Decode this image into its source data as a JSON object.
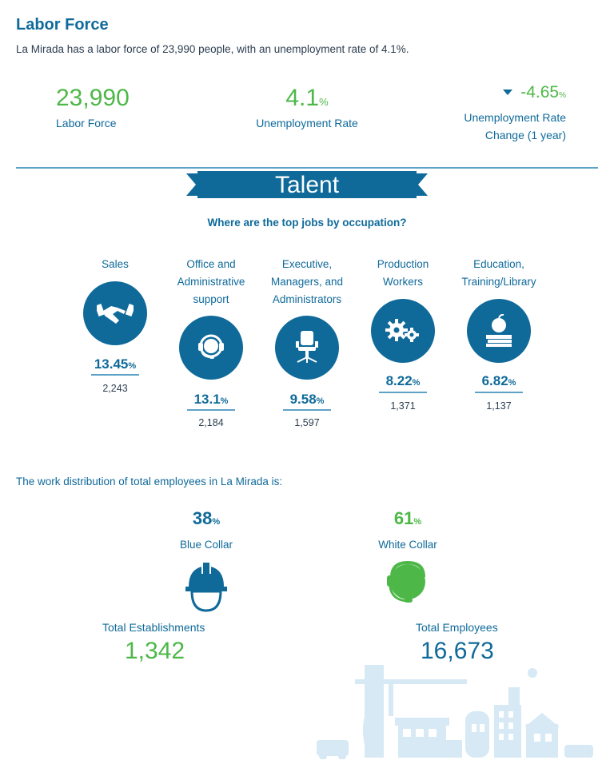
{
  "header": {
    "title": "Labor Force",
    "intro": "La Mirada has a labor force of 23,990 people, with an unemployment rate of 4.1%."
  },
  "stats": {
    "labor_force_value": "23,990",
    "labor_force_label": "Labor Force",
    "unemployment_value": "4.1",
    "unemployment_unit": "%",
    "unemployment_label": "Unemployment Rate",
    "change_value": "-4.65",
    "change_unit": "%",
    "change_label_line1": "Unemployment Rate",
    "change_label_line2": "Change (1 year)",
    "change_direction_icon": "triangle-down-icon"
  },
  "talent": {
    "ribbon_label": "Talent",
    "question": "Where are the top jobs by occupation?",
    "occupations": [
      {
        "label_lines": [
          "Sales"
        ],
        "percent": "13.45",
        "unit": "%",
        "count": "2,243",
        "icon": "handshake-icon"
      },
      {
        "label_lines": [
          "Office and",
          "Administrative",
          "support"
        ],
        "percent": "13.1",
        "unit": "%",
        "count": "2,184",
        "icon": "headset-icon"
      },
      {
        "label_lines": [
          "Executive,",
          "Managers, and",
          "Administrators"
        ],
        "percent": "9.58",
        "unit": "%",
        "count": "1,597",
        "icon": "office-chair-icon"
      },
      {
        "label_lines": [
          "Production",
          "Workers"
        ],
        "percent": "8.22",
        "unit": "%",
        "count": "1,371",
        "icon": "gears-icon"
      },
      {
        "label_lines": [
          "Education,",
          "Training/Library"
        ],
        "percent": "6.82",
        "unit": "%",
        "count": "1,137",
        "icon": "apple-books-icon"
      }
    ]
  },
  "distribution": {
    "intro": "The work distribution of total employees in La Mirada is:",
    "blue_collar_percent": "38",
    "blue_collar_unit": "%",
    "blue_collar_label": "Blue Collar",
    "white_collar_percent": "61",
    "white_collar_unit": "%",
    "white_collar_label": "White Collar",
    "total_establishments_label": "Total Establishments",
    "total_establishments_value": "1,342",
    "total_employees_label": "Total Employees",
    "total_employees_value": "16,673"
  },
  "colors": {
    "primary_blue": "#0f6a9a",
    "accent_green": "#4db848",
    "skyline_blue": "#d6e9f4"
  }
}
